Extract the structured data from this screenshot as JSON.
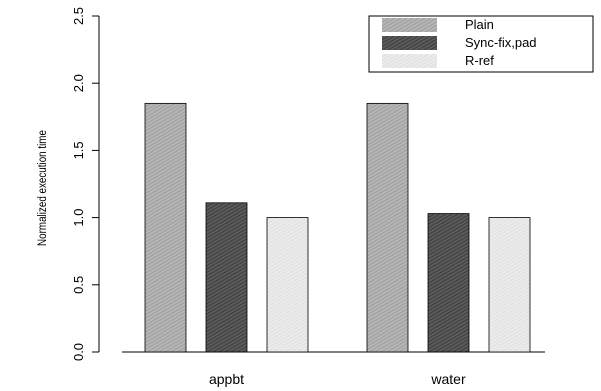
{
  "chart_data": {
    "type": "bar",
    "categories": [
      "appbt",
      "water"
    ],
    "series": [
      {
        "name": "Plain",
        "values": [
          1.85,
          1.85
        ],
        "color": "#a3a3a3",
        "pattern": "hatch-light"
      },
      {
        "name": "Sync-fix,pad",
        "values": [
          1.11,
          1.03
        ],
        "color": "#4a4a4a",
        "pattern": "hatch-dark"
      },
      {
        "name": "R-ref",
        "values": [
          1.0,
          1.0
        ],
        "color": "#e6e6e6",
        "pattern": "hatch-pale"
      }
    ],
    "ylabel": "Normalized execution time",
    "xlabel": "",
    "ylim": [
      0,
      2.5
    ],
    "yticks": [
      "0.0",
      "0.5",
      "1.0",
      "1.5",
      "2.0",
      "2.5"
    ],
    "legend": "top-right",
    "grid": false
  }
}
